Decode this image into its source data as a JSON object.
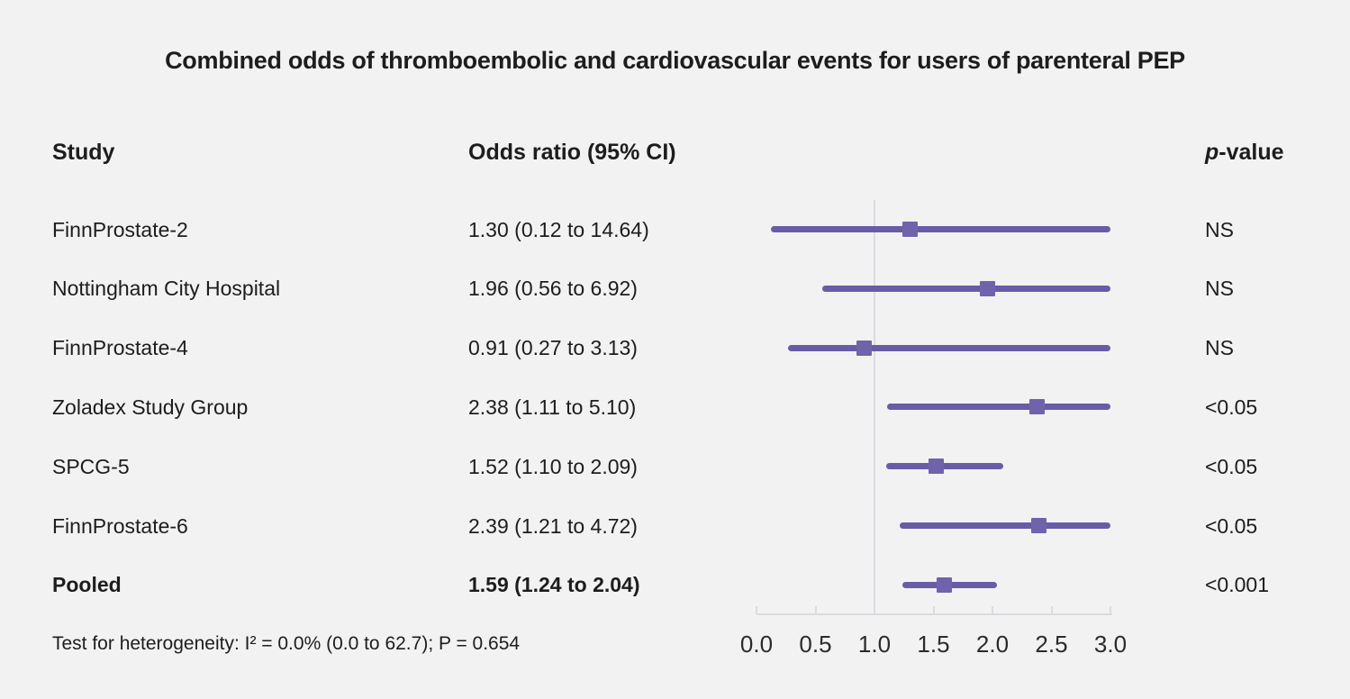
{
  "title": "Combined odds of thromboembolic and cardiovascular events for users of parenteral PEP",
  "columns": {
    "study": "Study",
    "odds_ratio": "Odds ratio (95% CI)",
    "p_prefix": "p",
    "p_suffix": "-value"
  },
  "footer": "Test for heterogeneity: I² = 0.0% (0.0 to 62.7); P = 0.654",
  "colors": {
    "background": "#f2f2f2",
    "ci_line": "#695ca7",
    "marker": "#7162ac",
    "axis": "#d9dce1",
    "text": "#1d1d1d"
  },
  "chart_data": {
    "type": "forest",
    "title": "Combined odds of thromboembolic and cardiovascular events for users of parenteral PEP",
    "xlim": [
      0,
      3
    ],
    "x_ticks": [
      "0.0",
      "0.5",
      "1.0",
      "1.5",
      "2.0",
      "2.5",
      "3.0"
    ],
    "x_tick_values": [
      0,
      0.5,
      1.0,
      1.5,
      2.0,
      2.5,
      3.0
    ],
    "reference_line": 1.0,
    "grid": "off",
    "rows": [
      {
        "study": "FinnProstate-2",
        "or_text": "1.30 (0.12 to 14.64)",
        "est": 1.3,
        "lo": 0.12,
        "hi": 14.64,
        "p": "NS",
        "bold": false
      },
      {
        "study": "Nottingham City Hospital",
        "or_text": "1.96 (0.56 to 6.92)",
        "est": 1.96,
        "lo": 0.56,
        "hi": 6.92,
        "p": "NS",
        "bold": false
      },
      {
        "study": "FinnProstate-4",
        "or_text": "0.91 (0.27 to 3.13)",
        "est": 0.91,
        "lo": 0.27,
        "hi": 3.13,
        "p": "NS",
        "bold": false
      },
      {
        "study": "Zoladex Study Group",
        "or_text": "2.38 (1.11 to 5.10)",
        "est": 2.38,
        "lo": 1.11,
        "hi": 5.1,
        "p": "<0.05",
        "bold": false
      },
      {
        "study": "SPCG-5",
        "or_text": "1.52 (1.10 to 2.09)",
        "est": 1.52,
        "lo": 1.1,
        "hi": 2.09,
        "p": "<0.05",
        "bold": false
      },
      {
        "study": "FinnProstate-6",
        "or_text": "2.39 (1.21 to 4.72)",
        "est": 2.39,
        "lo": 1.21,
        "hi": 4.72,
        "p": "<0.05",
        "bold": false
      },
      {
        "study": "Pooled",
        "or_text": "1.59 (1.24 to 2.04)",
        "est": 1.59,
        "lo": 1.24,
        "hi": 2.04,
        "p": "<0.001",
        "bold": true
      }
    ]
  }
}
